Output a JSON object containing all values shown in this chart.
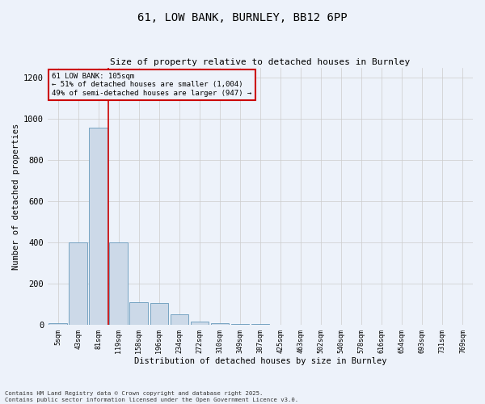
{
  "title_line1": "61, LOW BANK, BURNLEY, BB12 6PP",
  "title_line2": "Size of property relative to detached houses in Burnley",
  "xlabel": "Distribution of detached houses by size in Burnley",
  "ylabel": "Number of detached properties",
  "annotation_title": "61 LOW BANK: 105sqm",
  "annotation_line2": "← 51% of detached houses are smaller (1,004)",
  "annotation_line3": "49% of semi-detached houses are larger (947) →",
  "footer_line1": "Contains HM Land Registry data © Crown copyright and database right 2025.",
  "footer_line2": "Contains public sector information licensed under the Open Government Licence v3.0.",
  "bins": [
    "5sqm",
    "43sqm",
    "81sqm",
    "119sqm",
    "158sqm",
    "196sqm",
    "234sqm",
    "272sqm",
    "310sqm",
    "349sqm",
    "387sqm",
    "425sqm",
    "463sqm",
    "502sqm",
    "540sqm",
    "578sqm",
    "616sqm",
    "654sqm",
    "693sqm",
    "731sqm",
    "769sqm"
  ],
  "values": [
    10,
    400,
    960,
    400,
    110,
    105,
    50,
    15,
    8,
    5,
    4,
    0,
    0,
    0,
    0,
    0,
    0,
    0,
    0,
    0,
    0
  ],
  "bar_color": "#ccd9e8",
  "bar_edge_color": "#6699bb",
  "vline_x": 2.5,
  "vline_color": "#cc0000",
  "annotation_box_color": "#cc0000",
  "grid_color": "#cccccc",
  "background_color": "#edf2fa",
  "ylim": [
    0,
    1250
  ],
  "yticks": [
    0,
    200,
    400,
    600,
    800,
    1000,
    1200
  ]
}
